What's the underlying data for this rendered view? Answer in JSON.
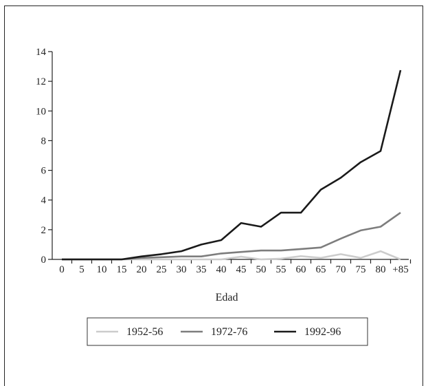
{
  "chart_data": {
    "type": "line",
    "title": "",
    "xlabel": "Edad",
    "ylabel": "",
    "categories": [
      "0",
      "5",
      "10",
      "15",
      "20",
      "25",
      "30",
      "35",
      "40",
      "45",
      "50",
      "55",
      "60",
      "65",
      "70",
      "75",
      "80",
      "+85"
    ],
    "ylim": [
      0,
      14
    ],
    "yticks": [
      0,
      2,
      4,
      6,
      8,
      10,
      12,
      14
    ],
    "grid": false,
    "legend_position": "bottom",
    "series": [
      {
        "name": "1952-56",
        "color": "#cccccc",
        "values": [
          0,
          0,
          0,
          0,
          0,
          0,
          0,
          0,
          0,
          0.18,
          0,
          0.05,
          0.22,
          0.1,
          0.35,
          0.1,
          0.55,
          0
        ]
      },
      {
        "name": "1972-76",
        "color": "#7d7d7d",
        "values": [
          0,
          0,
          0,
          0,
          0.1,
          0.15,
          0.2,
          0.2,
          0.4,
          0.5,
          0.6,
          0.6,
          0.7,
          0.8,
          1.4,
          1.95,
          2.2,
          3.15
        ]
      },
      {
        "name": "1992-96",
        "color": "#1a1a1a",
        "values": [
          0,
          0,
          0,
          0,
          0.2,
          0.35,
          0.55,
          1.0,
          1.3,
          2.45,
          2.2,
          3.15,
          3.15,
          4.7,
          5.5,
          6.55,
          7.3,
          12.75
        ]
      }
    ]
  }
}
